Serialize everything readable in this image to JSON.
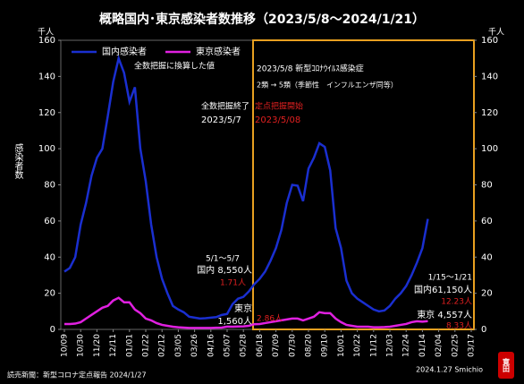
{
  "chart_data": {
    "type": "line",
    "title": "概略国内･東京感染者数推移（2023/5/8～2024/1/21）",
    "y_label": "感染者数",
    "y_unit": "千人",
    "y2_unit": "千人",
    "legend_note": "全数把握に換算した値",
    "categories": [
      "10/09",
      null,
      null,
      "10/30",
      null,
      null,
      "11/20",
      null,
      null,
      "12/11",
      null,
      null,
      "01/01",
      null,
      null,
      "01/22",
      null,
      null,
      "02/12",
      null,
      null,
      "03/05",
      null,
      null,
      "03/26",
      null,
      null,
      "04/16",
      null,
      null,
      "05/07",
      null,
      null,
      "05/28",
      null,
      null,
      "06/18",
      null,
      null,
      "07/09",
      null,
      null,
      "07/30",
      null,
      null,
      "08/20",
      null,
      null,
      "09/10",
      null,
      null,
      "10/01",
      null,
      null,
      "10/22",
      null,
      null,
      "11/12",
      null,
      null,
      "12/03",
      null,
      null,
      "12/24",
      null,
      null,
      "01/14",
      null,
      null,
      "02/04",
      null,
      null,
      "02/25",
      null,
      null,
      "03/17"
    ],
    "series": [
      {
        "name": "国内感染者",
        "color": "#1a2fd0",
        "values": [
          32,
          34,
          40,
          58,
          70,
          85,
          95,
          100,
          118,
          137,
          150,
          142,
          126,
          134,
          100,
          82,
          58,
          40,
          28,
          20,
          13,
          11,
          9.5,
          7,
          6.5,
          6,
          6.2,
          6.5,
          6.8,
          8,
          8.55,
          14,
          17,
          18,
          21,
          25,
          28,
          32,
          38,
          45,
          55,
          70,
          80,
          79.5,
          71,
          89,
          95,
          103,
          101,
          88,
          56,
          45,
          27,
          20,
          17,
          15,
          13,
          11,
          10,
          10.5,
          13,
          17,
          20,
          24,
          30,
          37,
          45,
          61.15,
          null,
          null,
          null,
          null,
          null,
          null,
          null,
          null
        ]
      },
      {
        "name": "東京感染者",
        "color": "#e020e0",
        "values": [
          3,
          3,
          3.2,
          4,
          6,
          8,
          10,
          12,
          13,
          16,
          17.5,
          15,
          15,
          11,
          9,
          6,
          5,
          3.5,
          2.5,
          2,
          1.5,
          1.2,
          1,
          0.8,
          0.8,
          0.8,
          0.8,
          0.8,
          0.9,
          1,
          1.56,
          1.5,
          1.6,
          1.7,
          2,
          2.86,
          3,
          3.5,
          4,
          4.5,
          5,
          5.5,
          6,
          6,
          5,
          6,
          7,
          9.5,
          9,
          9,
          6,
          4,
          2.5,
          2,
          1.5,
          1.5,
          1.5,
          1.2,
          1.2,
          1.3,
          1.5,
          2,
          2.5,
          3,
          4,
          4.5,
          4.3,
          4.557,
          null,
          null,
          null,
          null,
          null,
          null,
          null,
          null
        ]
      }
    ],
    "ylim": [
      0,
      160
    ],
    "yticks": [
      0,
      20,
      40,
      60,
      80,
      100,
      120,
      140,
      160
    ],
    "y2lim": [
      0,
      160
    ],
    "y2ticks": [
      0,
      20,
      40,
      60,
      80,
      100,
      120,
      140,
      160
    ],
    "annotations": [
      "2023/5/8 新型ｺﾛﾅｳｲﾙｽ感染症",
      "2類 → 5類（季節性　インフルエンザ同等）",
      "全数把握終了",
      "定点把握開始",
      "2023/5/7",
      "2023/5/08",
      "5/1～5/7",
      "国内 8,550人",
      "1.71人",
      "東京",
      "1,560人",
      "2.86人",
      "1/15～1/21",
      "国内61,150人",
      "12.23人",
      "東京 4,557人",
      "8.33人"
    ],
    "source": "読売新聞：新型コロナ定点報告 2024/1/27",
    "credit": "2024.1.27 Smichio",
    "seal": "寛田"
  }
}
